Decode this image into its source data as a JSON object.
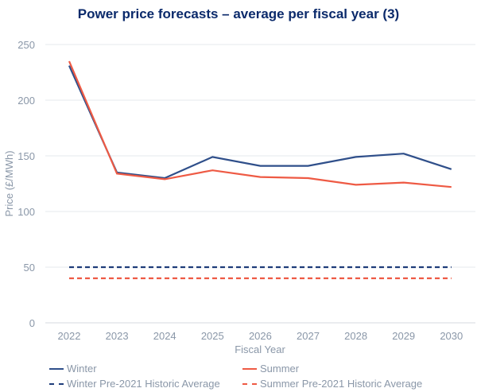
{
  "chart_data": {
    "type": "line",
    "title": "Power price forecasts – average per fiscal year (3)",
    "xlabel": "Fiscal Year",
    "ylabel": "Price (£/MWh)",
    "ylim": [
      0,
      250
    ],
    "yticks": [
      0,
      50,
      100,
      150,
      200,
      250
    ],
    "grid": true,
    "legend_placement": "bottom",
    "categories": [
      "2022",
      "2023",
      "2024",
      "2025",
      "2026",
      "2027",
      "2028",
      "2029",
      "2030"
    ],
    "series": [
      {
        "name": "Winter",
        "color": "#2f4f8a",
        "dash": false,
        "values": [
          231,
          135,
          130,
          149,
          141,
          141,
          149,
          152,
          138
        ]
      },
      {
        "name": "Summer",
        "color": "#ee5a44",
        "dash": false,
        "values": [
          235,
          134,
          129,
          137,
          131,
          130,
          124,
          126,
          122
        ]
      },
      {
        "name": "Winter Pre-2021 Historic Average",
        "color": "#1f3d7a",
        "dash": true,
        "values": [
          50,
          50,
          50,
          50,
          50,
          50,
          50,
          50,
          50
        ]
      },
      {
        "name": "Summer Pre-2021 Historic Average",
        "color": "#ee5a44",
        "dash": true,
        "values": [
          40,
          40,
          40,
          40,
          40,
          40,
          40,
          40,
          40
        ]
      }
    ]
  }
}
